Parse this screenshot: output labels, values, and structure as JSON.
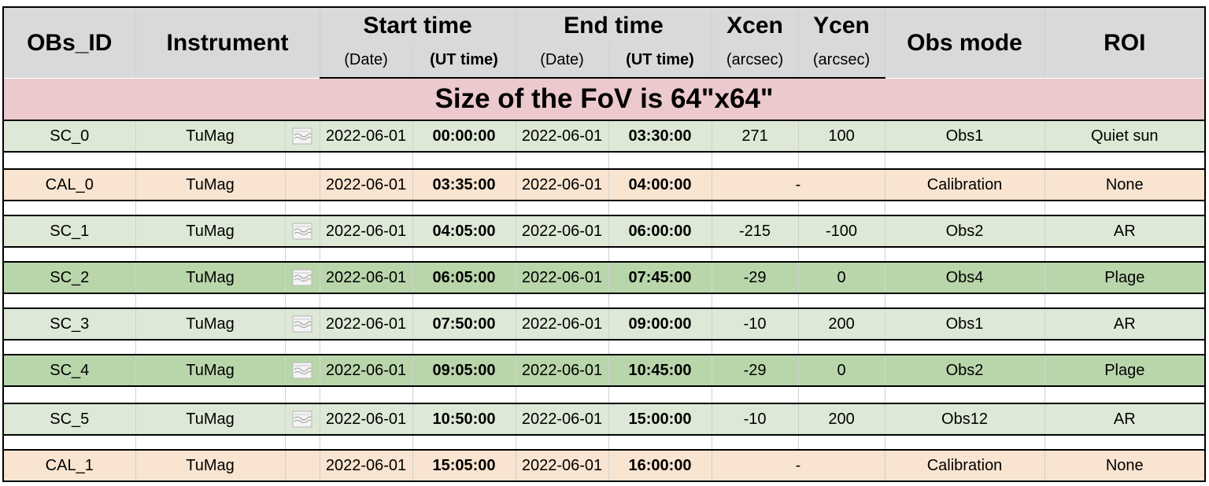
{
  "header": {
    "obs_id": "OBs_ID",
    "instrument": "Instrument",
    "start_time": "Start time",
    "end_time": "End time",
    "xcen": "Xcen",
    "ycen": "Ycen",
    "obs_mode": "Obs mode",
    "roi": "ROI",
    "start_date_sub": "(Date)",
    "start_ut_sub": "(UT time)",
    "end_date_sub": "(Date)",
    "end_ut_sub": "(UT time)",
    "xcen_sub": "(arcsec)",
    "ycen_sub": "(arcsec)"
  },
  "banner": "Size of the FoV is 64\"x64\"",
  "rows": [
    {
      "id": "SC_0",
      "instrument": "TuMag",
      "icon": "image-placeholder-icon",
      "start_date": "2022-06-01",
      "start_time": "00:00:00",
      "end_date": "2022-06-01",
      "end_time": "03:30:00",
      "xcen": "271",
      "ycen": "100",
      "obs_mode": "Obs1",
      "roi": "Quiet sun",
      "color": "#dde9d6"
    },
    {
      "id": "CAL_0",
      "instrument": "TuMag",
      "start_date": "2022-06-01",
      "start_time": "03:35:00",
      "end_date": "2022-06-01",
      "end_time": "04:00:00",
      "center": "-",
      "obs_mode": "Calibration",
      "roi": "None",
      "color": "#f8e4d0"
    },
    {
      "id": "SC_1",
      "instrument": "TuMag",
      "icon": "image-placeholder-icon",
      "start_date": "2022-06-01",
      "start_time": "04:05:00",
      "end_date": "2022-06-01",
      "end_time": "06:00:00",
      "xcen": "-215",
      "ycen": "-100",
      "obs_mode": "Obs2",
      "roi": "AR",
      "color": "#dde9d6"
    },
    {
      "id": "SC_2",
      "instrument": "TuMag",
      "icon": "image-placeholder-icon",
      "start_date": "2022-06-01",
      "start_time": "06:05:00",
      "end_date": "2022-06-01",
      "end_time": "07:45:00",
      "xcen": "-29",
      "ycen": "0",
      "obs_mode": "Obs4",
      "roi": "Plage",
      "color": "#b9d6ab"
    },
    {
      "id": "SC_3",
      "instrument": "TuMag",
      "icon": "image-placeholder-icon",
      "start_date": "2022-06-01",
      "start_time": "07:50:00",
      "end_date": "2022-06-01",
      "end_time": "09:00:00",
      "xcen": "-10",
      "ycen": "200",
      "obs_mode": "Obs1",
      "roi": "AR",
      "color": "#dde9d6"
    },
    {
      "id": "SC_4",
      "instrument": "TuMag",
      "icon": "image-placeholder-icon",
      "start_date": "2022-06-01",
      "start_time": "09:05:00",
      "end_date": "2022-06-01",
      "end_time": "10:45:00",
      "xcen": "-29",
      "ycen": "0",
      "obs_mode": "Obs2",
      "roi": "Plage",
      "color": "#b9d6ab"
    },
    {
      "id": "SC_5",
      "instrument": "TuMag",
      "icon": "image-placeholder-icon",
      "start_date": "2022-06-01",
      "start_time": "10:50:00",
      "end_date": "2022-06-01",
      "end_time": "15:00:00",
      "xcen": "-10",
      "ycen": "200",
      "obs_mode": "Obs12",
      "roi": "AR",
      "color": "#dde9d6"
    },
    {
      "id": "CAL_1",
      "instrument": "TuMag",
      "start_date": "2022-06-01",
      "start_time": "15:05:00",
      "end_date": "2022-06-01",
      "end_time": "16:00:00",
      "center": "-",
      "obs_mode": "Calibration",
      "roi": "None",
      "color": "#f8e4d0"
    }
  ]
}
